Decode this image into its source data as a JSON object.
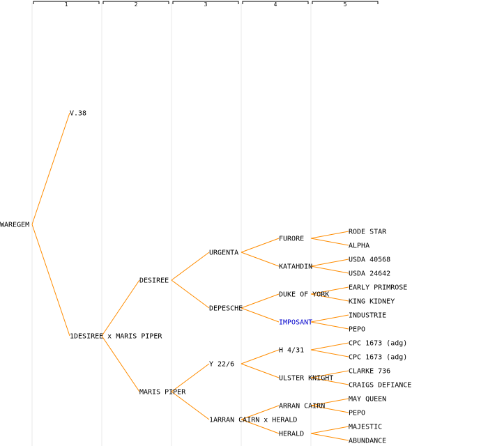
{
  "generations": [
    "1",
    "2",
    "3",
    "4",
    "5"
  ],
  "colors": {
    "edge": "#ff8c00",
    "column_line": "#e8e8e8",
    "bracket": "#000000",
    "text": "#000000",
    "link_text": "#0000cc"
  },
  "nodes": [
    {
      "id": "waregem",
      "label": "WAREGEM",
      "gen": 0,
      "row": 16
    },
    {
      "id": "v38",
      "label": "V.38",
      "gen": 1,
      "row": 8,
      "parent": "waregem"
    },
    {
      "id": "cross1",
      "label": "1DESIREE x MARIS PIPER",
      "gen": 1,
      "row": 24,
      "parent": "waregem"
    },
    {
      "id": "desiree",
      "label": "DESIREE",
      "gen": 2,
      "row": 20,
      "parent": "cross1"
    },
    {
      "id": "marispiper",
      "label": "MARIS PIPER",
      "gen": 2,
      "row": 28,
      "parent": "cross1"
    },
    {
      "id": "urgenta",
      "label": "URGENTA",
      "gen": 3,
      "row": 18,
      "parent": "desiree"
    },
    {
      "id": "depesche",
      "label": "DEPESCHE",
      "gen": 3,
      "row": 22,
      "parent": "desiree"
    },
    {
      "id": "y226",
      "label": "Y 22/6",
      "gen": 3,
      "row": 26,
      "parent": "marispiper"
    },
    {
      "id": "cross2",
      "label": "1ARRAN CAIRN x HERALD",
      "gen": 3,
      "row": 30,
      "parent": "marispiper"
    },
    {
      "id": "furore",
      "label": "FURORE",
      "gen": 4,
      "row": 17,
      "parent": "urgenta"
    },
    {
      "id": "katahdin",
      "label": "KATAHDIN",
      "gen": 4,
      "row": 19,
      "parent": "urgenta"
    },
    {
      "id": "dukeofyork",
      "label": "DUKE OF YORK",
      "gen": 4,
      "row": 21,
      "parent": "depesche"
    },
    {
      "id": "imposant",
      "label": "IMPOSANT",
      "gen": 4,
      "row": 23,
      "parent": "depesche",
      "link": true
    },
    {
      "id": "h431",
      "label": "H 4/31",
      "gen": 4,
      "row": 25,
      "parent": "y226"
    },
    {
      "id": "ulsterknight",
      "label": "ULSTER KNIGHT",
      "gen": 4,
      "row": 27,
      "parent": "y226"
    },
    {
      "id": "arrancairn",
      "label": "ARRAN CAIRN",
      "gen": 4,
      "row": 29,
      "parent": "cross2"
    },
    {
      "id": "herald",
      "label": "HERALD",
      "gen": 4,
      "row": 31,
      "parent": "cross2"
    },
    {
      "id": "rodestar",
      "label": "RODE STAR",
      "gen": 5,
      "row": 16.5,
      "parent": "furore"
    },
    {
      "id": "alpha",
      "label": "ALPHA",
      "gen": 5,
      "row": 17.5,
      "parent": "furore"
    },
    {
      "id": "usda40568",
      "label": "USDA 40568",
      "gen": 5,
      "row": 18.5,
      "parent": "katahdin"
    },
    {
      "id": "usda24642",
      "label": "USDA 24642",
      "gen": 5,
      "row": 19.5,
      "parent": "katahdin"
    },
    {
      "id": "earlyprimrose",
      "label": "EARLY PRIMROSE",
      "gen": 5,
      "row": 20.5,
      "parent": "dukeofyork"
    },
    {
      "id": "kingkidney",
      "label": "KING KIDNEY",
      "gen": 5,
      "row": 21.5,
      "parent": "dukeofyork"
    },
    {
      "id": "industrie",
      "label": "INDUSTRIE",
      "gen": 5,
      "row": 22.5,
      "parent": "imposant"
    },
    {
      "id": "pepo1",
      "label": "PEPO",
      "gen": 5,
      "row": 23.5,
      "parent": "imposant"
    },
    {
      "id": "cpc1673a",
      "label": "CPC 1673 (adg)",
      "gen": 5,
      "row": 24.5,
      "parent": "h431"
    },
    {
      "id": "cpc1673b",
      "label": "CPC 1673 (adg)",
      "gen": 5,
      "row": 25.5,
      "parent": "h431"
    },
    {
      "id": "clarke736",
      "label": "CLARKE 736",
      "gen": 5,
      "row": 26.5,
      "parent": "ulsterknight"
    },
    {
      "id": "craigsdefiance",
      "label": "CRAIGS DEFIANCE",
      "gen": 5,
      "row": 27.5,
      "parent": "ulsterknight"
    },
    {
      "id": "mayqueen",
      "label": "MAY QUEEN",
      "gen": 5,
      "row": 28.5,
      "parent": "arrancairn"
    },
    {
      "id": "pepo2",
      "label": "PEPO",
      "gen": 5,
      "row": 29.5,
      "parent": "arrancairn"
    },
    {
      "id": "majestic",
      "label": "MAJESTIC",
      "gen": 5,
      "row": 30.5,
      "parent": "herald"
    },
    {
      "id": "abundance",
      "label": "ABUNDANCE",
      "gen": 5,
      "row": 31.5,
      "parent": "herald"
    }
  ]
}
